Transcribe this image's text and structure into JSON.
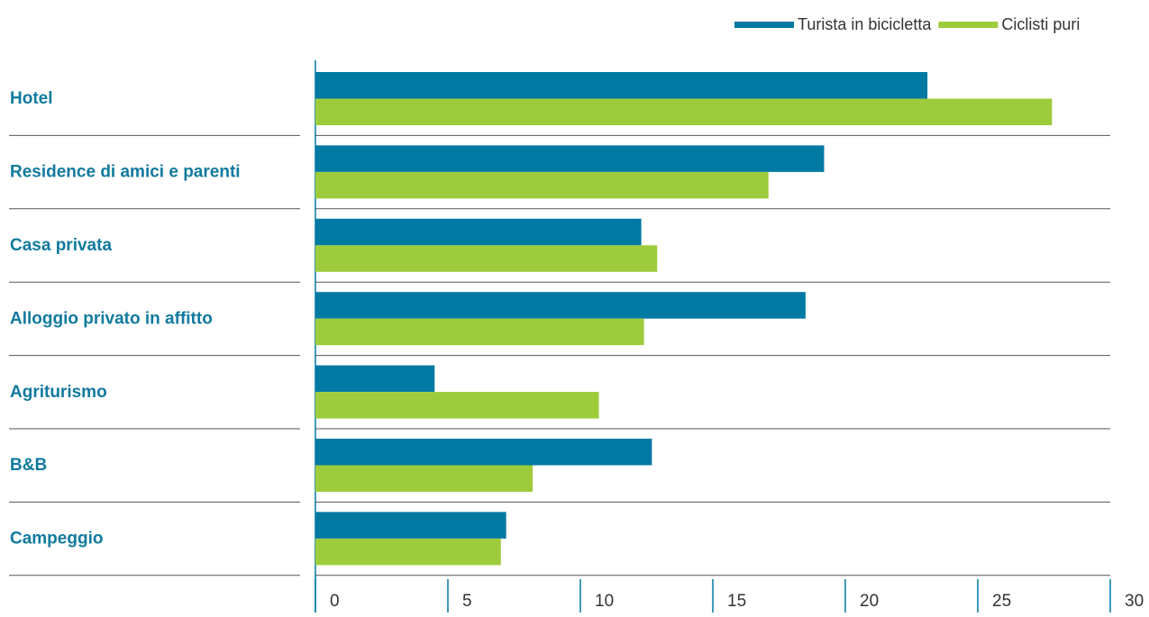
{
  "chart_data": {
    "type": "hbar",
    "categories": [
      "Hotel",
      "Residence di amici e parenti",
      "Casa privata",
      "Alloggio privato in affitto",
      "Agriturismo",
      "B&B",
      "Campeggio"
    ],
    "series": [
      {
        "name": "Turista in bicicletta",
        "color": "#0079a3",
        "values": [
          23.1,
          19.2,
          12.3,
          18.5,
          4.5,
          12.7,
          7.2
        ]
      },
      {
        "name": "Ciclisti puri",
        "color": "#9dcb3c",
        "values": [
          27.8,
          17.1,
          12.9,
          12.4,
          10.7,
          8.2,
          7.0
        ]
      }
    ],
    "xlim": [
      0,
      30
    ],
    "xticks": [
      0,
      5,
      10,
      15,
      20,
      25,
      30
    ],
    "legend": "top-right"
  }
}
